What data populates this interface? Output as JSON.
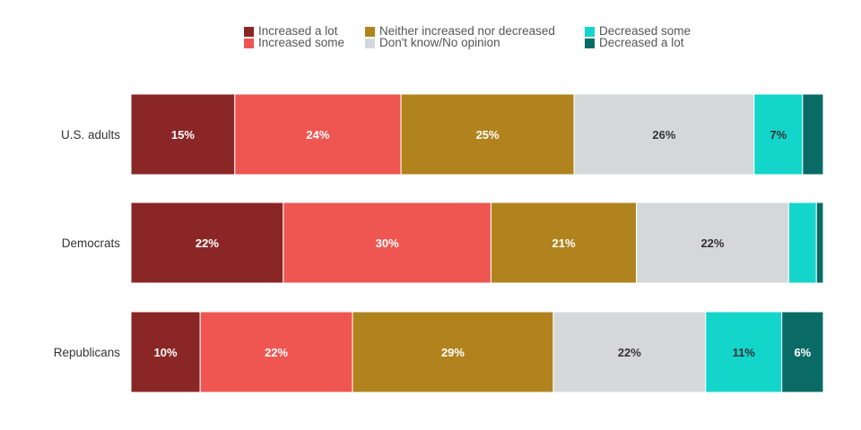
{
  "chart_data": {
    "type": "bar",
    "orientation": "horizontal",
    "stacked": true,
    "categories": [
      "U.S. adults",
      "Democrats",
      "Republicans"
    ],
    "series": [
      {
        "name": "Increased a lot",
        "color": "#8B2626",
        "values": [
          15,
          22,
          10
        ],
        "labels": [
          "15%",
          "22%",
          "10%"
        ]
      },
      {
        "name": "Increased some",
        "color": "#EF5651",
        "values": [
          24,
          30,
          22
        ],
        "labels": [
          "24%",
          "30%",
          "22%"
        ]
      },
      {
        "name": "Neither increased nor decreased",
        "color": "#B0831E",
        "values": [
          25,
          21,
          29
        ],
        "labels": [
          "25%",
          "21%",
          "29%"
        ]
      },
      {
        "name": "Don't know/No opinion",
        "color": "#D5D8D9",
        "values": [
          26,
          22,
          22
        ],
        "labels": [
          "26%",
          "22%",
          "22%"
        ]
      },
      {
        "name": "Decreased some",
        "color": "#13D5CA",
        "values": [
          7,
          4,
          11
        ],
        "labels": [
          "7%",
          "",
          "11%"
        ]
      },
      {
        "name": "Decreased a lot",
        "color": "#0A6B66",
        "values": [
          3,
          1,
          6
        ],
        "labels": [
          "",
          "",
          "6%"
        ]
      }
    ],
    "legend_position": "top",
    "grid": false,
    "xlim": [
      0,
      100
    ]
  }
}
